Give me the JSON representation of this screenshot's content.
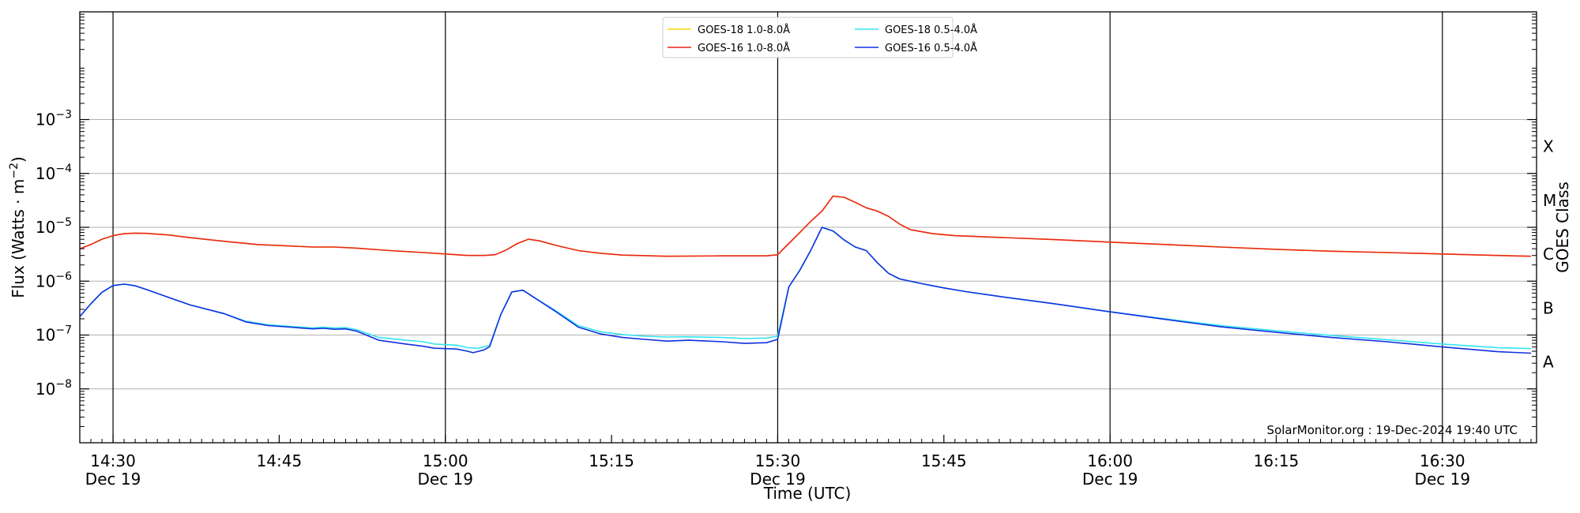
{
  "chart_data": {
    "type": "line",
    "xlabel": "Time (UTC)",
    "ylabel": "Flux (Watts · m",
    "ylabel_exp": "−2",
    "ylabel_close": ")",
    "right_label": "GOES Class",
    "credit": "SolarMonitor.org : 19-Dec-2024 19:40 UTC",
    "x_unit": "minutes since 14:00 UTC, 19-Dec-2024",
    "xlim": [
      27,
      158.5
    ],
    "y_log_lim": [
      -9.0,
      -1.0
    ],
    "y_scale": "log",
    "x_ticks": [
      {
        "t": 30,
        "label": "14:30",
        "sub": "Dec 19",
        "major": true
      },
      {
        "t": 45,
        "label": "14:45",
        "sub": "",
        "major": false
      },
      {
        "t": 60,
        "label": "15:00",
        "sub": "Dec 19",
        "major": true
      },
      {
        "t": 75,
        "label": "15:15",
        "sub": "",
        "major": false
      },
      {
        "t": 90,
        "label": "15:30",
        "sub": "Dec 19",
        "major": true
      },
      {
        "t": 105,
        "label": "15:45",
        "sub": "",
        "major": false
      },
      {
        "t": 120,
        "label": "16:00",
        "sub": "Dec 19",
        "major": true
      },
      {
        "t": 135,
        "label": "16:15",
        "sub": "",
        "major": false
      },
      {
        "t": 150,
        "label": "16:30",
        "sub": "Dec 19",
        "major": true
      }
    ],
    "y_ticks": [
      {
        "exp": -8,
        "base": "10",
        "sup": "−8"
      },
      {
        "exp": -7,
        "base": "10",
        "sup": "−7"
      },
      {
        "exp": -6,
        "base": "10",
        "sup": "−6"
      },
      {
        "exp": -5,
        "base": "10",
        "sup": "−5"
      },
      {
        "exp": -4,
        "base": "10",
        "sup": "−4"
      },
      {
        "exp": -3,
        "base": "10",
        "sup": "−3"
      }
    ],
    "goes_classes": [
      {
        "label": "A",
        "exp": -7.5
      },
      {
        "label": "B",
        "exp": -6.5
      },
      {
        "label": "C",
        "exp": -5.5
      },
      {
        "label": "M",
        "exp": -4.5
      },
      {
        "label": "X",
        "exp": -3.5
      }
    ],
    "grid": true,
    "legend_position": "top-center",
    "series": [
      {
        "name": "GOES-18 1.0-8.0Å",
        "color": "#ffd700",
        "points": [
          [
            27,
            4e-06
          ],
          [
            28,
            4.8e-06
          ],
          [
            29,
            6e-06
          ],
          [
            30,
            7e-06
          ],
          [
            31,
            7.6e-06
          ],
          [
            32,
            7.8e-06
          ],
          [
            33,
            7.7e-06
          ],
          [
            35,
            7.2e-06
          ],
          [
            37,
            6.4e-06
          ],
          [
            40,
            5.5e-06
          ],
          [
            43,
            4.8e-06
          ],
          [
            46,
            4.5e-06
          ],
          [
            48,
            4.3e-06
          ],
          [
            50,
            4.3e-06
          ],
          [
            52,
            4.1e-06
          ],
          [
            55,
            3.7e-06
          ],
          [
            58,
            3.4e-06
          ],
          [
            60,
            3.2e-06
          ],
          [
            62,
            3e-06
          ],
          [
            63.5,
            3e-06
          ],
          [
            64.5,
            3.1e-06
          ],
          [
            65.5,
            3.8e-06
          ],
          [
            66.5,
            5e-06
          ],
          [
            67.5,
            6e-06
          ],
          [
            68.5,
            5.6e-06
          ],
          [
            70,
            4.6e-06
          ],
          [
            72,
            3.7e-06
          ],
          [
            74,
            3.3e-06
          ],
          [
            76,
            3.05e-06
          ],
          [
            80,
            2.9e-06
          ],
          [
            85,
            2.95e-06
          ],
          [
            89,
            2.95e-06
          ],
          [
            90,
            3.1e-06
          ],
          [
            91,
            5e-06
          ],
          [
            92,
            8e-06
          ],
          [
            93,
            1.3e-05
          ],
          [
            94,
            2e-05
          ],
          [
            95,
            3.8e-05
          ],
          [
            96,
            3.6e-05
          ],
          [
            97,
            2.9e-05
          ],
          [
            98,
            2.3e-05
          ],
          [
            99,
            2e-05
          ],
          [
            100,
            1.6e-05
          ],
          [
            101,
            1.15e-05
          ],
          [
            102,
            9e-06
          ],
          [
            104,
            7.6e-06
          ],
          [
            106,
            7e-06
          ],
          [
            110,
            6.5e-06
          ],
          [
            115,
            5.9e-06
          ],
          [
            120,
            5.3e-06
          ],
          [
            125,
            4.8e-06
          ],
          [
            130,
            4.3e-06
          ],
          [
            135,
            3.9e-06
          ],
          [
            140,
            3.6e-06
          ],
          [
            145,
            3.4e-06
          ],
          [
            150,
            3.2e-06
          ],
          [
            155,
            3e-06
          ],
          [
            158,
            2.9e-06
          ]
        ]
      },
      {
        "name": "GOES-16 1.0-8.0Å",
        "color": "#e8271c",
        "points": [
          [
            27,
            4e-06
          ],
          [
            28,
            4.8e-06
          ],
          [
            29,
            6e-06
          ],
          [
            30,
            7e-06
          ],
          [
            31,
            7.6e-06
          ],
          [
            32,
            7.8e-06
          ],
          [
            33,
            7.7e-06
          ],
          [
            35,
            7.2e-06
          ],
          [
            37,
            6.4e-06
          ],
          [
            40,
            5.5e-06
          ],
          [
            43,
            4.8e-06
          ],
          [
            46,
            4.5e-06
          ],
          [
            48,
            4.3e-06
          ],
          [
            50,
            4.3e-06
          ],
          [
            52,
            4.1e-06
          ],
          [
            55,
            3.7e-06
          ],
          [
            58,
            3.4e-06
          ],
          [
            60,
            3.2e-06
          ],
          [
            62,
            3e-06
          ],
          [
            63.5,
            3e-06
          ],
          [
            64.5,
            3.1e-06
          ],
          [
            65.5,
            3.8e-06
          ],
          [
            66.5,
            5e-06
          ],
          [
            67.5,
            6e-06
          ],
          [
            68.5,
            5.6e-06
          ],
          [
            70,
            4.6e-06
          ],
          [
            72,
            3.7e-06
          ],
          [
            74,
            3.3e-06
          ],
          [
            76,
            3.05e-06
          ],
          [
            80,
            2.9e-06
          ],
          [
            85,
            2.95e-06
          ],
          [
            89,
            2.95e-06
          ],
          [
            90,
            3.1e-06
          ],
          [
            91,
            5e-06
          ],
          [
            92,
            8e-06
          ],
          [
            93,
            1.3e-05
          ],
          [
            94,
            2e-05
          ],
          [
            95,
            3.8e-05
          ],
          [
            96,
            3.6e-05
          ],
          [
            97,
            2.9e-05
          ],
          [
            98,
            2.3e-05
          ],
          [
            99,
            2e-05
          ],
          [
            100,
            1.6e-05
          ],
          [
            101,
            1.15e-05
          ],
          [
            102,
            9e-06
          ],
          [
            104,
            7.6e-06
          ],
          [
            106,
            7e-06
          ],
          [
            110,
            6.5e-06
          ],
          [
            115,
            5.9e-06
          ],
          [
            120,
            5.3e-06
          ],
          [
            125,
            4.8e-06
          ],
          [
            130,
            4.3e-06
          ],
          [
            135,
            3.9e-06
          ],
          [
            140,
            3.6e-06
          ],
          [
            145,
            3.4e-06
          ],
          [
            150,
            3.2e-06
          ],
          [
            155,
            3e-06
          ],
          [
            158,
            2.9e-06
          ]
        ]
      },
      {
        "name": "GOES-18 0.5-4.0Å",
        "color": "#33e4f0",
        "points": [
          [
            27,
            2.2e-07
          ],
          [
            28,
            3.8e-07
          ],
          [
            29,
            6.2e-07
          ],
          [
            30,
            8.3e-07
          ],
          [
            31,
            8.8e-07
          ],
          [
            32,
            8.2e-07
          ],
          [
            33,
            7e-07
          ],
          [
            35,
            5e-07
          ],
          [
            37,
            3.6e-07
          ],
          [
            40,
            2.5e-07
          ],
          [
            42,
            1.8e-07
          ],
          [
            44,
            1.55e-07
          ],
          [
            46,
            1.45e-07
          ],
          [
            48,
            1.35e-07
          ],
          [
            49,
            1.4e-07
          ],
          [
            50,
            1.35e-07
          ],
          [
            51,
            1.38e-07
          ],
          [
            52,
            1.25e-07
          ],
          [
            54,
            9e-08
          ],
          [
            56,
            8.2e-08
          ],
          [
            58,
            7.5e-08
          ],
          [
            59,
            6.8e-08
          ],
          [
            61,
            6.5e-08
          ],
          [
            62,
            5.8e-08
          ],
          [
            63,
            5.7e-08
          ],
          [
            64,
            6.4e-08
          ],
          [
            65,
            2.4e-07
          ],
          [
            66,
            6.3e-07
          ],
          [
            67,
            6.8e-07
          ],
          [
            68,
            5e-07
          ],
          [
            70,
            2.8e-07
          ],
          [
            72,
            1.5e-07
          ],
          [
            74,
            1.15e-07
          ],
          [
            76,
            1.02e-07
          ],
          [
            78,
            9.5e-08
          ],
          [
            80,
            9.2e-08
          ],
          [
            82,
            9.3e-08
          ],
          [
            85,
            9e-08
          ],
          [
            87,
            8.6e-08
          ],
          [
            89,
            8.8e-08
          ],
          [
            90,
            9.5e-08
          ],
          [
            91,
            7.8e-07
          ],
          [
            92,
            1.6e-06
          ],
          [
            93,
            3.8e-06
          ],
          [
            94,
            1e-05
          ],
          [
            95,
            8.5e-06
          ],
          [
            96,
            5.8e-06
          ],
          [
            97,
            4.3e-06
          ],
          [
            98,
            3.7e-06
          ],
          [
            99,
            2.2e-06
          ],
          [
            100,
            1.4e-06
          ],
          [
            101,
            1.1e-06
          ],
          [
            103,
            9e-07
          ],
          [
            105,
            7.5e-07
          ],
          [
            107,
            6.4e-07
          ],
          [
            110,
            5.2e-07
          ],
          [
            115,
            3.8e-07
          ],
          [
            120,
            2.7e-07
          ],
          [
            125,
            2e-07
          ],
          [
            130,
            1.5e-07
          ],
          [
            135,
            1.2e-07
          ],
          [
            140,
            9.8e-08
          ],
          [
            145,
            8.2e-08
          ],
          [
            150,
            6.8e-08
          ],
          [
            155,
            5.8e-08
          ],
          [
            158,
            5.6e-08
          ]
        ]
      },
      {
        "name": "GOES-16 0.5-4.0Å",
        "color": "#1030e0",
        "points": [
          [
            27,
            2.2e-07
          ],
          [
            28,
            3.8e-07
          ],
          [
            29,
            6.2e-07
          ],
          [
            30,
            8.3e-07
          ],
          [
            31,
            8.8e-07
          ],
          [
            32,
            8.2e-07
          ],
          [
            33,
            7e-07
          ],
          [
            35,
            5e-07
          ],
          [
            37,
            3.6e-07
          ],
          [
            40,
            2.5e-07
          ],
          [
            42,
            1.75e-07
          ],
          [
            44,
            1.5e-07
          ],
          [
            46,
            1.4e-07
          ],
          [
            48,
            1.3e-07
          ],
          [
            49,
            1.33e-07
          ],
          [
            50,
            1.28e-07
          ],
          [
            51,
            1.3e-07
          ],
          [
            52,
            1.18e-07
          ],
          [
            54,
            8e-08
          ],
          [
            56,
            7e-08
          ],
          [
            58,
            6.2e-08
          ],
          [
            59,
            5.7e-08
          ],
          [
            61,
            5.5e-08
          ],
          [
            62,
            5e-08
          ],
          [
            62.5,
            4.7e-08
          ],
          [
            63.5,
            5.3e-08
          ],
          [
            64,
            6.1e-08
          ],
          [
            65,
            2.4e-07
          ],
          [
            66,
            6.3e-07
          ],
          [
            67,
            6.8e-07
          ],
          [
            68,
            5e-07
          ],
          [
            70,
            2.7e-07
          ],
          [
            72,
            1.4e-07
          ],
          [
            74,
            1.05e-07
          ],
          [
            76,
            9e-08
          ],
          [
            78,
            8.3e-08
          ],
          [
            80,
            7.7e-08
          ],
          [
            82,
            8e-08
          ],
          [
            85,
            7.5e-08
          ],
          [
            87,
            7e-08
          ],
          [
            89,
            7.2e-08
          ],
          [
            90,
            8.3e-08
          ],
          [
            91,
            7.8e-07
          ],
          [
            92,
            1.6e-06
          ],
          [
            93,
            3.8e-06
          ],
          [
            94,
            1e-05
          ],
          [
            95,
            8.5e-06
          ],
          [
            96,
            5.8e-06
          ],
          [
            97,
            4.3e-06
          ],
          [
            98,
            3.7e-06
          ],
          [
            99,
            2.2e-06
          ],
          [
            100,
            1.4e-06
          ],
          [
            101,
            1.1e-06
          ],
          [
            103,
            9e-07
          ],
          [
            105,
            7.5e-07
          ],
          [
            107,
            6.4e-07
          ],
          [
            110,
            5.2e-07
          ],
          [
            115,
            3.8e-07
          ],
          [
            120,
            2.7e-07
          ],
          [
            125,
            1.95e-07
          ],
          [
            130,
            1.42e-07
          ],
          [
            135,
            1.12e-07
          ],
          [
            140,
            9e-08
          ],
          [
            145,
            7.5e-08
          ],
          [
            150,
            6e-08
          ],
          [
            155,
            4.9e-08
          ],
          [
            158,
            4.6e-08
          ]
        ]
      }
    ]
  }
}
